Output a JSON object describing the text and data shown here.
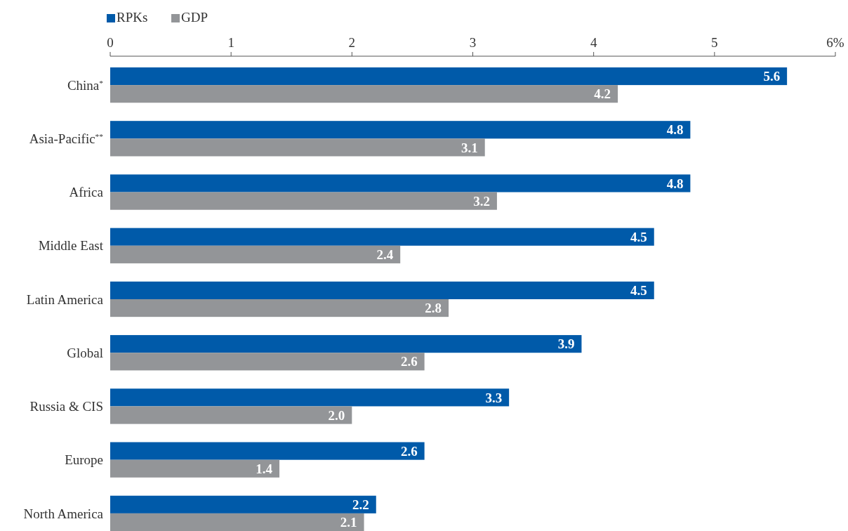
{
  "chart_data": {
    "type": "bar",
    "orientation": "horizontal",
    "categories": [
      "China$^{*}$",
      "Asia-Pacific$^{**}$",
      "Africa",
      "Middle East",
      "Latin America",
      "Global",
      "Russia & CIS",
      "Europe",
      "North America"
    ],
    "series": [
      {
        "name": "RPKs",
        "color": "#005aa9",
        "values": [
          5.6,
          4.8,
          4.8,
          4.5,
          4.5,
          3.9,
          3.3,
          2.6,
          2.2
        ],
        "value_labels": [
          "5.6",
          "4.8",
          "4.8",
          "4.5",
          "4.5",
          "3.9",
          "3.3",
          "2.6",
          "2.2"
        ]
      },
      {
        "name": "GDP",
        "color": "#939598",
        "values": [
          4.2,
          3.1,
          3.2,
          2.4,
          2.8,
          2.6,
          2.0,
          1.4,
          2.1
        ],
        "value_labels": [
          "4.2",
          "3.1",
          "3.2",
          "2.4",
          "2.8",
          "2.6",
          "2.0",
          "1.4",
          "2.1"
        ]
      }
    ],
    "xlim": [
      0,
      6
    ],
    "xticks": [
      0,
      1,
      2,
      3,
      4,
      5,
      {
        "value": 6,
        "label": "6%"
      }
    ],
    "grid": false,
    "legend": "top left"
  }
}
